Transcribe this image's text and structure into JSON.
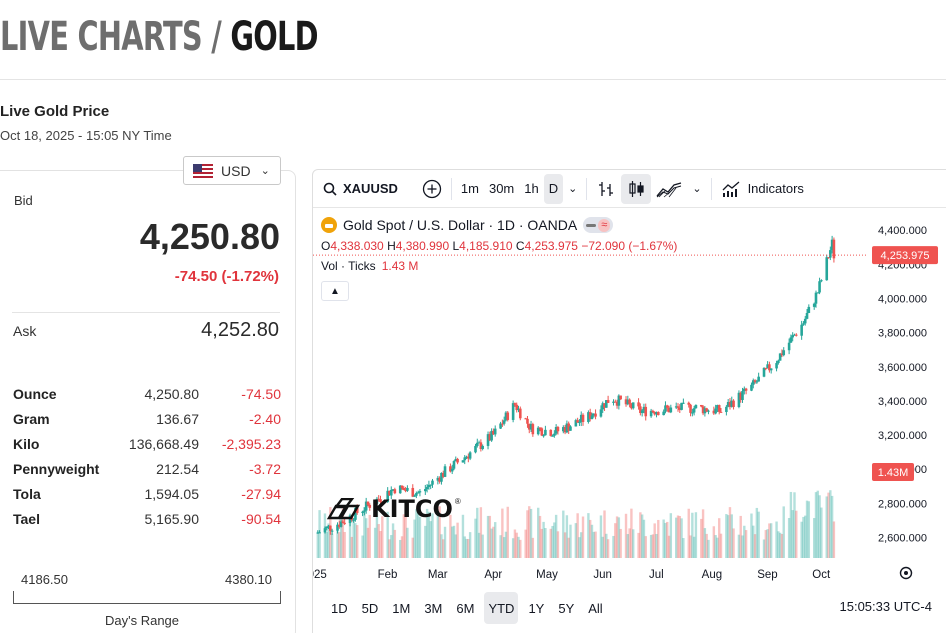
{
  "page": {
    "title_prefix": "LIVE CHARTS /",
    "title_main": "GOLD"
  },
  "header": {
    "label": "Live Gold Price",
    "timestamp": "Oct 18, 2025 - 15:05 NY Time"
  },
  "currency": {
    "selected": "USD",
    "flag_icon": "us-flag-icon"
  },
  "quote": {
    "bid_label": "Bid",
    "bid": "4,250.80",
    "bid_change": "-74.50 (-1.72%)",
    "ask_label": "Ask",
    "ask": "4,252.80"
  },
  "units": [
    {
      "name": "Ounce",
      "price": "4,250.80",
      "change": "-74.50"
    },
    {
      "name": "Gram",
      "price": "136.67",
      "change": "-2.40"
    },
    {
      "name": "Kilo",
      "price": "136,668.49",
      "change": "-2,395.23"
    },
    {
      "name": "Pennyweight",
      "price": "212.54",
      "change": "-3.72"
    },
    {
      "name": "Tola",
      "price": "1,594.05",
      "change": "-27.94"
    },
    {
      "name": "Tael",
      "price": "5,165.90",
      "change": "-90.54"
    }
  ],
  "day_range": {
    "low": "4186.50",
    "high": "4380.10",
    "label": "Day's Range"
  },
  "toolbar": {
    "symbol": "XAUUSD",
    "intervals": [
      "1m",
      "30m",
      "1h",
      "D"
    ],
    "active_interval": "D",
    "indicators_label": "Indicators"
  },
  "legend": {
    "title": "Gold Spot  /  U.S. Dollar · 1D · OANDA",
    "o_label": "O",
    "o": "4,338.030",
    "h_label": "H",
    "h": "4,380.990",
    "l_label": "L",
    "l": "4,185.910",
    "c_label": "C",
    "c": "4,253.975",
    "change": "−72.090 (−1.67%)",
    "vol_label": "Vol · Ticks",
    "vol": "1.43 M"
  },
  "logo_text": "KITCO",
  "colors": {
    "up": "#26a69a",
    "down": "#ef5350",
    "accent_red": "#e0343c",
    "flag_blue": "#3c3b6e"
  },
  "chart_data": {
    "type": "candlestick",
    "symbol": "XAUUSD",
    "y_ticks": [
      "4,400.000",
      "4,200.000",
      "4,000.000",
      "3,800.000",
      "3,600.000",
      "3,400.000",
      "3,200.000",
      "3,000.000",
      "2,800.000",
      "2,600.000"
    ],
    "y_tick_values": [
      4400,
      4200,
      4000,
      3800,
      3600,
      3400,
      3200,
      3000,
      2800,
      2600
    ],
    "x_ticks": [
      "2025",
      "Feb",
      "Mar",
      "Apr",
      "May",
      "Jun",
      "Jul",
      "Aug",
      "Sep",
      "Oct"
    ],
    "ylim": [
      2480,
      4530
    ],
    "last_price_label": "4,253.975",
    "last_price": 4253.975,
    "volume_label": "1.43M",
    "close_path": [
      [
        "2025-01-01",
        2625
      ],
      [
        "2025-01-15",
        2690
      ],
      [
        "2025-02-01",
        2800
      ],
      [
        "2025-02-14",
        2890
      ],
      [
        "2025-02-28",
        2860
      ],
      [
        "2025-03-14",
        2985
      ],
      [
        "2025-03-31",
        3120
      ],
      [
        "2025-04-10",
        3200
      ],
      [
        "2025-04-22",
        3380
      ],
      [
        "2025-05-01",
        3240
      ],
      [
        "2025-05-15",
        3220
      ],
      [
        "2025-06-01",
        3300
      ],
      [
        "2025-06-15",
        3420
      ],
      [
        "2025-07-01",
        3340
      ],
      [
        "2025-07-15",
        3350
      ],
      [
        "2025-08-01",
        3360
      ],
      [
        "2025-08-15",
        3340
      ],
      [
        "2025-09-01",
        3480
      ],
      [
        "2025-09-15",
        3640
      ],
      [
        "2025-09-30",
        3860
      ],
      [
        "2025-10-08",
        4040
      ],
      [
        "2025-10-16",
        4320
      ],
      [
        "2025-10-17",
        4253.975
      ]
    ]
  },
  "ranges": [
    "1D",
    "5D",
    "1M",
    "3M",
    "6M",
    "YTD",
    "1Y",
    "5Y",
    "All"
  ],
  "active_range": "YTD",
  "clock": "15:05:33 UTC-4"
}
